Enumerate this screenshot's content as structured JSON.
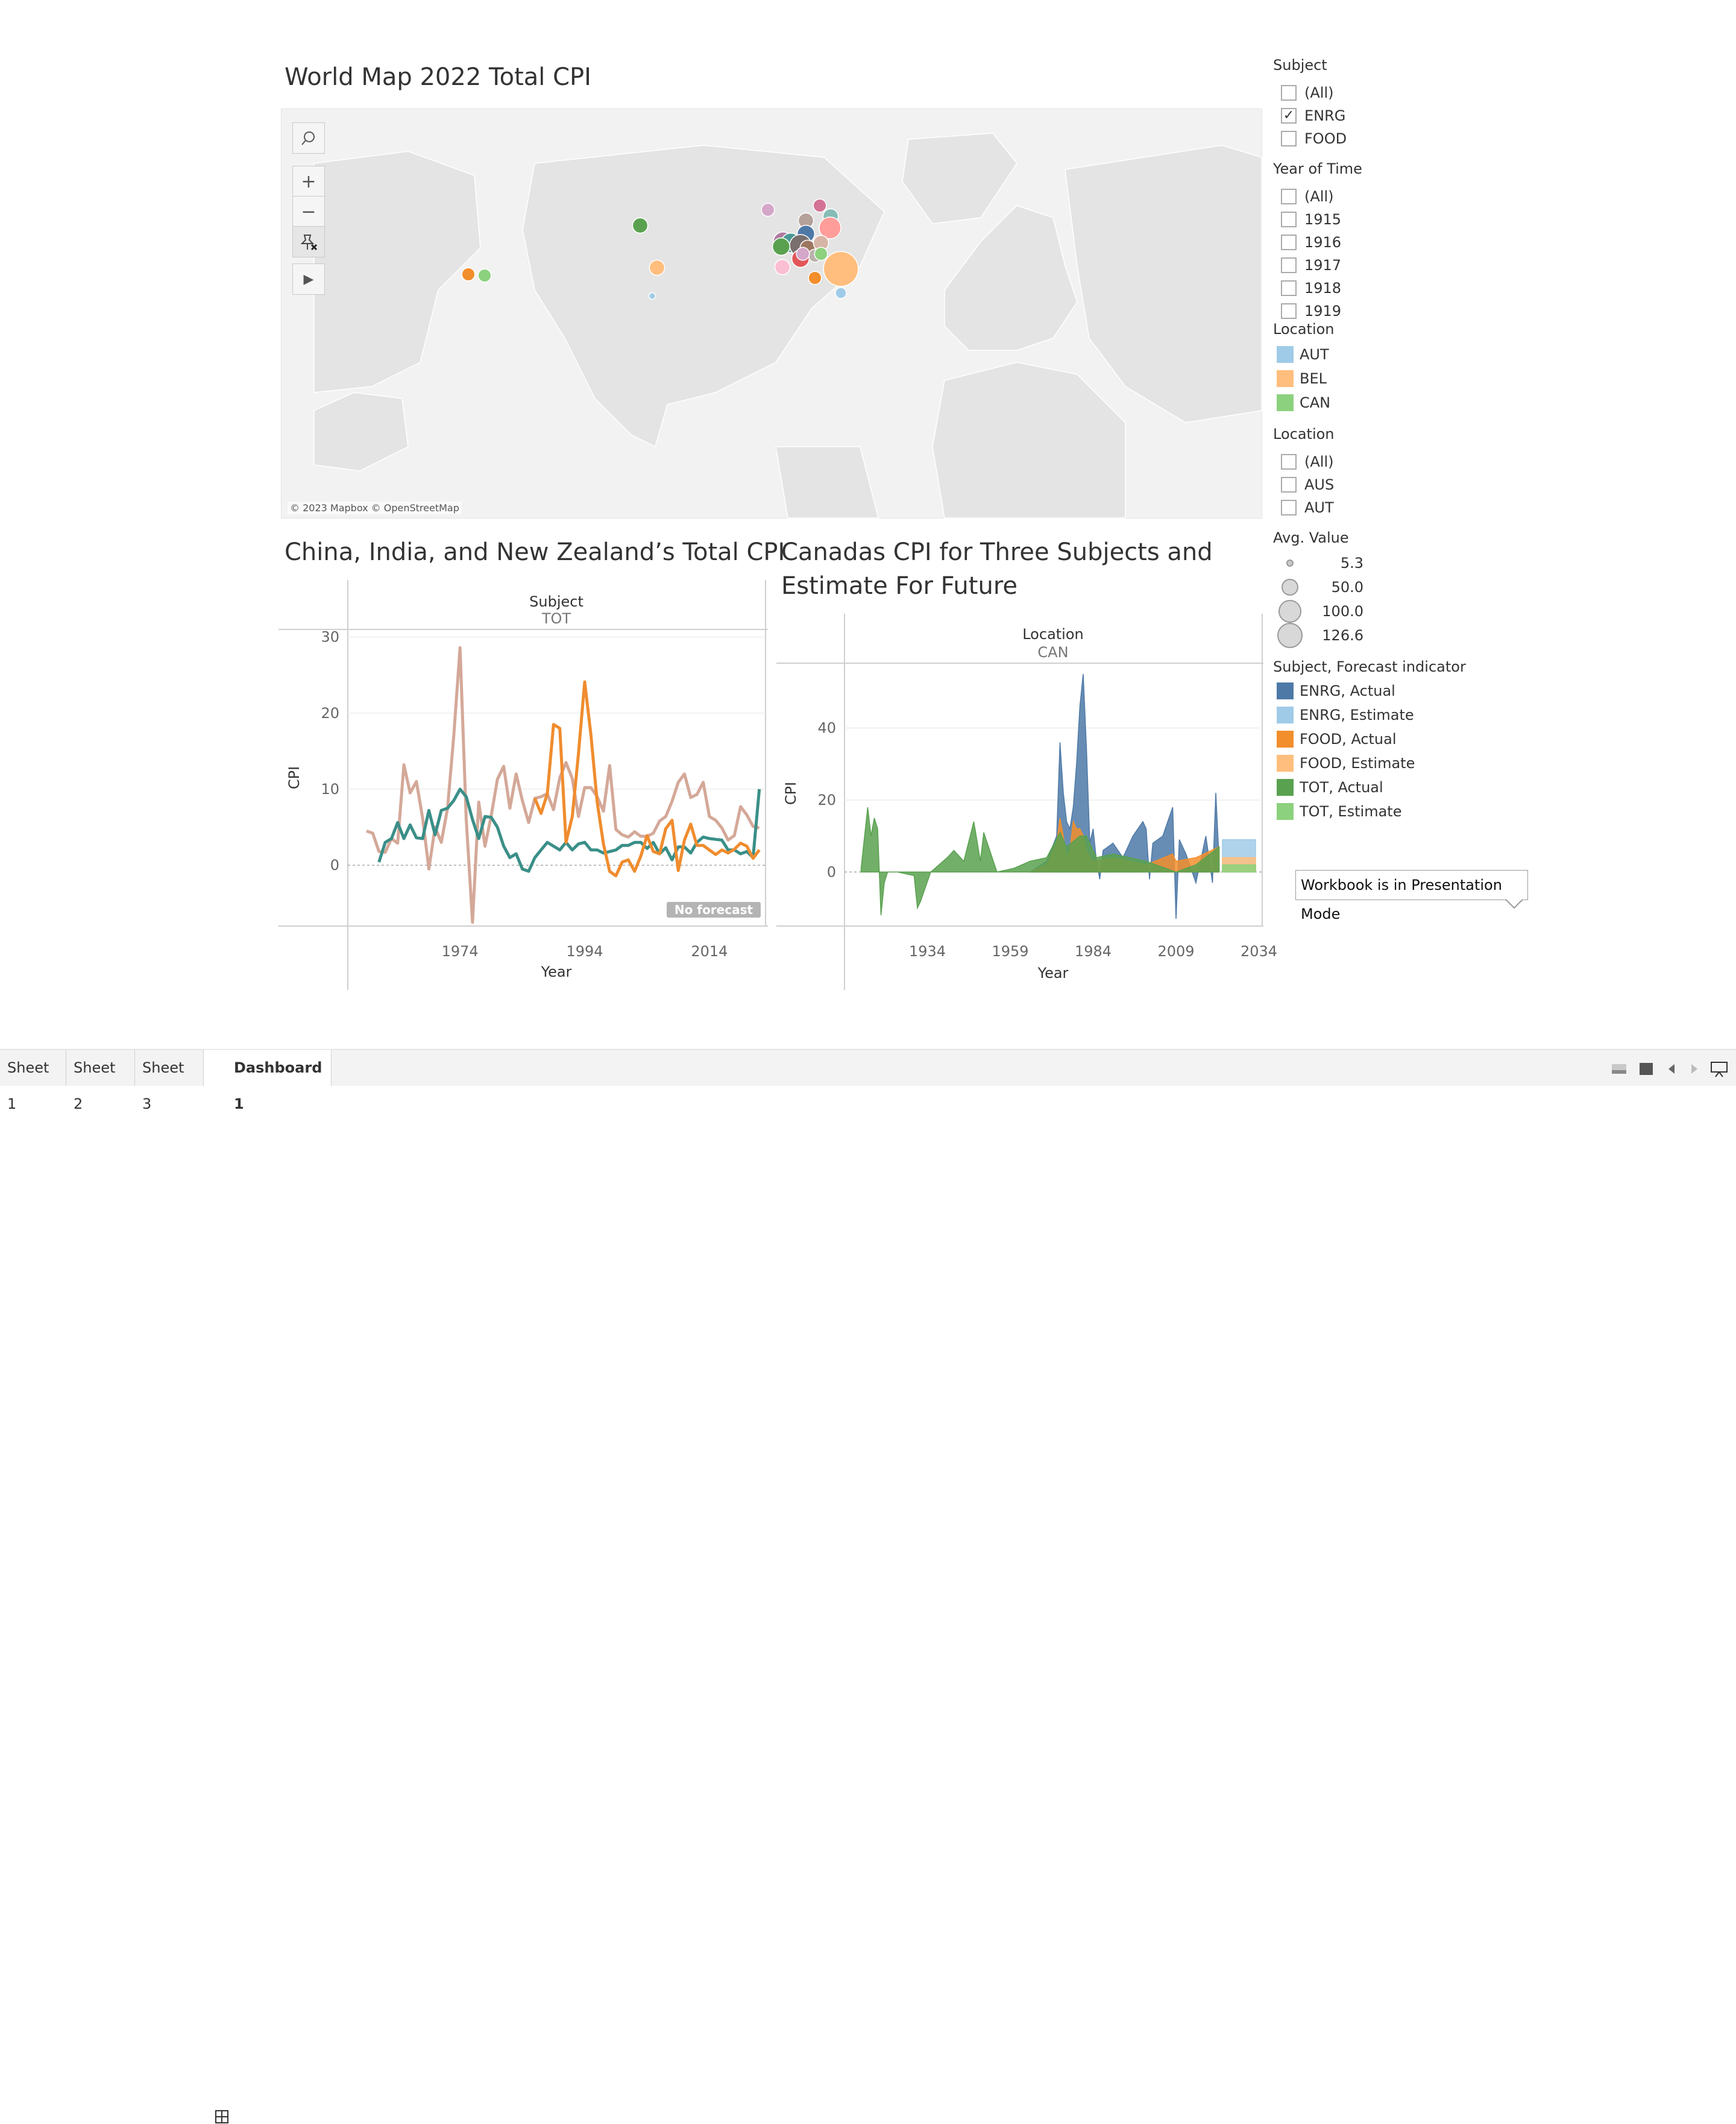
{
  "map": {
    "title": "World Map 2022 Total CPI",
    "attribution": "© 2023 Mapbox © OpenStreetMap",
    "controls": {
      "zoom_in": "+",
      "zoom_out": "−",
      "play": "▶"
    }
  },
  "chart1": {
    "title": "China, India, and New Zealand’s Total CPI",
    "header_label": "Subject",
    "header_value": "TOT",
    "ylabel": "CPI",
    "xlabel": "Year",
    "badge": "No forecast",
    "yticks": [
      "30",
      "20",
      "10",
      "0"
    ],
    "xticks": [
      "1974",
      "1994",
      "2014"
    ]
  },
  "chart2": {
    "title_line1": "Canadas CPI for Three Subjects and",
    "title_line2": "Estimate For Future",
    "header_label": "Location",
    "header_value": "CAN",
    "ylabel": "CPI",
    "xlabel": "Year",
    "yticks": [
      "40",
      "20",
      "0"
    ],
    "xticks": [
      "1934",
      "1959",
      "1984",
      "2009",
      "2034"
    ]
  },
  "chart_data": [
    {
      "type": "line",
      "title": "China, India, and New Zealand’s Total CPI",
      "xlabel": "Year",
      "ylabel": "CPI",
      "ylim": [
        -8,
        31
      ],
      "xlim": [
        1956,
        2023
      ],
      "series": [
        {
          "color": "#d4a898",
          "x": [
            1959,
            1960,
            1961,
            1962,
            1963,
            1964,
            1965,
            1966,
            1967,
            1968,
            1969,
            1970,
            1971,
            1972,
            1973,
            1974,
            1975,
            1976,
            1977,
            1978,
            1979,
            1980,
            1981,
            1982,
            1983,
            1984,
            1985,
            1986,
            1987,
            1988,
            1989,
            1990,
            1991,
            1992,
            1993,
            1994,
            1995,
            1996,
            1997,
            1998,
            1999,
            2000,
            2001,
            2002,
            2003,
            2004,
            2005,
            2006,
            2007,
            2008,
            2009,
            2010,
            2011,
            2012,
            2013,
            2014,
            2015,
            2016,
            2017,
            2018,
            2019,
            2020,
            2021,
            2022
          ],
          "y": [
            4.5,
            4.2,
            1.8,
            1.7,
            3.5,
            2.9,
            13.2,
            9.5,
            11.0,
            6.2,
            -0.5,
            5.0,
            3.0,
            7.5,
            17.0,
            28.6,
            6.0,
            -7.5,
            8.3,
            2.5,
            6.5,
            11.3,
            13.0,
            7.5,
            12.0,
            8.5,
            5.6,
            8.8,
            9.0,
            9.4,
            7.3,
            11.5,
            13.5,
            11.4,
            6.4,
            10.2,
            10.2,
            9.0,
            7.1,
            13.1,
            4.7,
            4.0,
            3.7,
            4.4,
            3.8,
            3.8,
            4.2,
            5.8,
            6.4,
            8.4,
            10.9,
            12.0,
            8.9,
            9.3,
            10.9,
            6.4,
            5.9,
            4.9,
            3.3,
            3.9,
            7.7,
            6.6,
            5.1,
            4.9
          ]
        },
        {
          "color": "#3a8f88",
          "x": [
            1961,
            1962,
            1963,
            1964,
            1965,
            1966,
            1967,
            1968,
            1969,
            1970,
            1971,
            1972,
            1973,
            1974,
            1975,
            1976,
            1977,
            1978,
            1979,
            1980,
            1981,
            1982,
            1983,
            1984,
            1985,
            1986,
            1987,
            1988,
            1989,
            1990,
            1991,
            1992,
            1993,
            1994,
            1995,
            1996,
            1997,
            1998,
            1999,
            2000,
            2001,
            2002,
            2003,
            2004,
            2005,
            2006,
            2007,
            2008,
            2009,
            2010,
            2011,
            2012,
            2013,
            2014,
            2015,
            2016,
            2017,
            2018,
            2019,
            2020,
            2021,
            2022
          ],
          "y": [
            0.4,
            3.0,
            3.5,
            5.6,
            3.5,
            5.3,
            3.6,
            3.5,
            7.2,
            4.0,
            7.2,
            7.5,
            8.5,
            10.0,
            9.0,
            6.0,
            3.5,
            6.4,
            6.3,
            5.0,
            2.5,
            1.0,
            1.5,
            -0.5,
            -0.8,
            1.0,
            2.0,
            3.0,
            2.5,
            2.0,
            3.0,
            2.0,
            2.8,
            3.0,
            2.0,
            2.0,
            1.6,
            1.8,
            2.0,
            2.6,
            2.6,
            3.0,
            3.0,
            2.2,
            3.0,
            1.5,
            2.3,
            0.7,
            2.4,
            2.4,
            1.6,
            3.0,
            3.7,
            3.5,
            3.4,
            3.3,
            2.0,
            2.0,
            1.5,
            1.8,
            1.0,
            10.0
          ]
        },
        {
          "color": "#f08c2e",
          "x": [
            1986,
            1987,
            1988,
            1989,
            1990,
            1991,
            1992,
            1993,
            1994,
            1995,
            1996,
            1997,
            1998,
            1999,
            2000,
            2001,
            2002,
            2003,
            2004,
            2005,
            2006,
            2007,
            2008,
            2009,
            2010,
            2011,
            2012,
            2013,
            2014,
            2015,
            2016,
            2017,
            2018,
            2019,
            2020,
            2021,
            2022
          ],
          "y": [
            8.8,
            6.8,
            9.4,
            18.5,
            18.0,
            3.0,
            6.4,
            14.7,
            24.1,
            17.1,
            8.3,
            2.8,
            -0.8,
            -1.4,
            0.4,
            0.7,
            -0.8,
            1.2,
            3.9,
            1.8,
            1.5,
            4.8,
            5.9,
            -0.7,
            3.3,
            5.4,
            2.6,
            2.6,
            2.0,
            1.4,
            2.0,
            1.6,
            2.1,
            2.9,
            2.5,
            0.9,
            2.0
          ]
        }
      ]
    },
    {
      "type": "area",
      "title": "Canadas CPI for Three Subjects and Estimate For Future",
      "xlabel": "Year",
      "ylabel": "CPI",
      "ylim": [
        -15,
        58
      ],
      "xlim": [
        1909,
        2035
      ],
      "series": [
        {
          "name": "ENRG, Actual",
          "color": "#4e79a7",
          "x": [
            1965,
            1970,
            1973,
            1974,
            1975,
            1976,
            1977,
            1978,
            1979,
            1980,
            1981,
            1982,
            1983,
            1984,
            1985,
            1986,
            1987,
            1990,
            1993,
            1996,
            1999,
            2000,
            2001,
            2002,
            2005,
            2008,
            2009,
            2010,
            2012,
            2015,
            2018,
            2020,
            2021,
            2022
          ],
          "y": [
            0,
            3,
            10,
            36,
            22,
            14,
            12,
            18,
            30,
            46,
            55,
            34,
            8,
            12,
            3,
            -2,
            6,
            8,
            4,
            10,
            14,
            12,
            -2,
            8,
            10,
            18,
            -13,
            9,
            5,
            -3,
            10,
            -3,
            22,
            3
          ]
        },
        {
          "name": "FOOD, Actual",
          "color": "#f28e2b",
          "x": [
            1965,
            1970,
            1973,
            1974,
            1975,
            1976,
            1977,
            1978,
            1979,
            1980,
            1981,
            1982,
            1983,
            1984,
            1990,
            2000,
            2008,
            2009,
            2015,
            2022
          ],
          "y": [
            0,
            2,
            8,
            15,
            10,
            4,
            6,
            14,
            12,
            12,
            10,
            6,
            4,
            3,
            4,
            2,
            5,
            3,
            4,
            7
          ]
        },
        {
          "name": "TOT, Actual",
          "color": "#59a14f",
          "x": [
            1914,
            1916,
            1917,
            1918,
            1919,
            1920,
            1921,
            1922,
            1923,
            1925,
            1930,
            1931,
            1932,
            1935,
            1940,
            1942,
            1945,
            1948,
            1950,
            1951,
            1955,
            1960,
            1965,
            1970,
            1974,
            1976,
            1980,
            1982,
            1985,
            1990,
            2000,
            2009,
            2015,
            2022
          ],
          "y": [
            1,
            18,
            10,
            15,
            12,
            -12,
            -3,
            0,
            0,
            0,
            -1,
            -10,
            -8,
            0,
            4,
            6,
            3,
            14,
            3,
            11,
            0,
            1,
            3,
            4,
            11,
            7,
            10,
            10,
            4,
            5,
            3,
            0,
            2,
            7
          ]
        },
        {
          "name": "ENRG, Estimate",
          "color": "#a0cbe8",
          "x": [
            2023,
            2033
          ],
          "y": [
            9,
            9
          ]
        },
        {
          "name": "FOOD, Estimate",
          "color": "#ffbe7d",
          "x": [
            2023,
            2033
          ],
          "y": [
            4,
            4
          ]
        },
        {
          "name": "TOT, Estimate",
          "color": "#8cd17d",
          "x": [
            2023,
            2033
          ],
          "y": [
            2,
            2
          ]
        }
      ]
    }
  ],
  "filters": {
    "subject": {
      "title": "Subject",
      "items": [
        "(All)",
        "ENRG",
        "FOOD"
      ],
      "checked": "ENRG"
    },
    "year": {
      "title": "Year of Time",
      "items": [
        "(All)",
        "1915",
        "1916",
        "1917",
        "1918",
        "1919"
      ]
    },
    "location_legend": {
      "title": "Location",
      "items": [
        {
          "label": "AUT",
          "color": "#a0cbe8"
        },
        {
          "label": "BEL",
          "color": "#ffbe7d"
        },
        {
          "label": "CAN",
          "color": "#8cd17d"
        }
      ]
    },
    "location_filter": {
      "title": "Location",
      "items": [
        "(All)",
        "AUS",
        "AUT"
      ]
    },
    "size_legend": {
      "title": "Avg. Value",
      "items": [
        "5.3",
        "50.0",
        "100.0",
        "126.6"
      ]
    },
    "forecast_legend": {
      "title": "Subject, Forecast indicator",
      "items": [
        {
          "label": "ENRG, Actual",
          "color": "#4e79a7"
        },
        {
          "label": "ENRG, Estimate",
          "color": "#a0cbe8"
        },
        {
          "label": "FOOD, Actual",
          "color": "#f28e2b"
        },
        {
          "label": "FOOD, Estimate",
          "color": "#ffbe7d"
        },
        {
          "label": "TOT, Actual",
          "color": "#59a14f"
        },
        {
          "label": "TOT, Estimate",
          "color": "#8cd17d"
        }
      ]
    }
  },
  "tooltip": "Workbook is in Presentation Mode",
  "tabs": [
    "Sheet 1",
    "Sheet 2",
    "Sheet 3",
    "Dashboard 1"
  ],
  "map_points": [
    {
      "color": "#59a14f"
    },
    {
      "color": "#8cd17d"
    },
    {
      "color": "#f28e2b"
    },
    {
      "color": "#ffbe7d"
    },
    {
      "color": "#a0cbe8"
    },
    {
      "color": "#d4a6c8"
    },
    {
      "color": "#d37295"
    },
    {
      "color": "#86bcb6"
    },
    {
      "color": "#b6a09a"
    },
    {
      "color": "#ff9d9a"
    },
    {
      "color": "#4e79a7"
    },
    {
      "color": "#b07aa1"
    },
    {
      "color": "#499894"
    },
    {
      "color": "#f1ce63"
    },
    {
      "color": "#79706e"
    },
    {
      "color": "#9d7660"
    },
    {
      "color": "#d7b5a6"
    },
    {
      "color": "#bab0ac"
    },
    {
      "color": "#e15759"
    },
    {
      "color": "#fabfd2"
    }
  ]
}
